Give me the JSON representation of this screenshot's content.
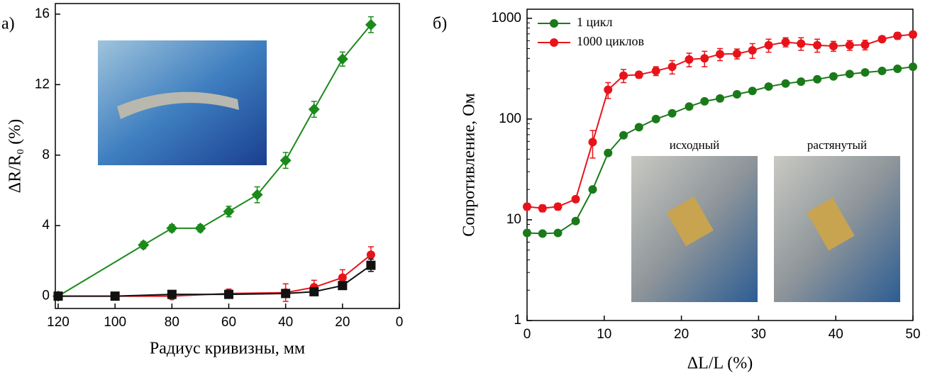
{
  "chart_data": [
    {
      "type": "line",
      "panel_label": "а)",
      "x_label": "Радиус кривизны, мм",
      "y_label": "ΔR/R₀ (%)",
      "xlim": [
        121,
        0
      ],
      "xticks": [
        120,
        100,
        80,
        60,
        40,
        20,
        0
      ],
      "ylim": [
        -0.7,
        16.6
      ],
      "yticks": [
        0,
        4,
        8,
        12,
        16
      ],
      "series": [
        {
          "color": "#1a8a1a",
          "marker": "diamond",
          "x": [
            120,
            90,
            80,
            70,
            60,
            50,
            40,
            30,
            20,
            10
          ],
          "values": [
            0.0,
            2.9,
            3.85,
            3.85,
            4.8,
            5.75,
            7.7,
            10.6,
            13.45,
            15.4
          ],
          "errors": [
            0.1,
            0.2,
            0.2,
            0.2,
            0.3,
            0.45,
            0.45,
            0.45,
            0.4,
            0.45
          ]
        },
        {
          "color": "#e8131a",
          "marker": "circle",
          "x": [
            120,
            100,
            80,
            60,
            40,
            30,
            20,
            10
          ],
          "values": [
            0.0,
            0.0,
            0.0,
            0.15,
            0.2,
            0.5,
            1.05,
            2.35
          ],
          "errors": [
            0.05,
            0.1,
            0.1,
            0.25,
            0.5,
            0.4,
            0.45,
            0.45
          ]
        },
        {
          "color": "#111111",
          "marker": "square",
          "x": [
            120,
            100,
            80,
            60,
            40,
            30,
            20,
            10
          ],
          "values": [
            0.0,
            0.0,
            0.1,
            0.1,
            0.15,
            0.25,
            0.6,
            1.75
          ],
          "errors": [
            0.05,
            0.1,
            0.1,
            0.1,
            0.15,
            0.15,
            0.1,
            0.35
          ]
        }
      ]
    },
    {
      "type": "line",
      "panel_label": "б)",
      "x_label": "ΔL/L (%)",
      "y_label": "Сопротивление, Ом",
      "log_y": true,
      "legend": "top-left",
      "xlim": [
        0,
        50
      ],
      "xticks": [
        0,
        10,
        20,
        30,
        40,
        50
      ],
      "ylim": [
        1,
        1230
      ],
      "yticks": [
        1,
        10,
        100,
        1000
      ],
      "annotations": [
        "исходный",
        "растянутый"
      ],
      "series": [
        {
          "name": "1 цикл",
          "color": "#1a7a1a",
          "marker": "circle",
          "x": [
            0,
            2,
            4,
            6.3,
            8.5,
            10.5,
            12.5,
            14.5,
            16.7,
            18.8,
            21,
            23,
            25,
            27.2,
            29.2,
            31.3,
            33.5,
            35.5,
            37.6,
            39.7,
            41.8,
            43.8,
            46,
            48,
            50
          ],
          "values": [
            7.4,
            7.3,
            7.4,
            9.7,
            20,
            46,
            69,
            83,
            100,
            114,
            133,
            150,
            160,
            176,
            190,
            210,
            225,
            235,
            248,
            265,
            280,
            290,
            300,
            315,
            330
          ]
        },
        {
          "name": "1000 циклов",
          "color": "#e8131a",
          "marker": "circle",
          "x": [
            0,
            2,
            4,
            6.3,
            8.5,
            10.5,
            12.5,
            14.5,
            16.7,
            18.8,
            21,
            23,
            25,
            27.2,
            29.2,
            31.3,
            33.5,
            35.5,
            37.6,
            39.7,
            41.8,
            43.8,
            46,
            48,
            50
          ],
          "values": [
            13.5,
            13,
            13.5,
            16,
            59,
            195,
            270,
            275,
            300,
            330,
            390,
            400,
            440,
            445,
            480,
            540,
            580,
            560,
            540,
            530,
            540,
            545,
            620,
            670,
            690
          ],
          "errors": [
            1,
            1,
            1,
            1,
            18,
            35,
            40,
            20,
            30,
            50,
            60,
            70,
            60,
            50,
            80,
            80,
            60,
            80,
            80,
            60,
            60,
            60,
            40,
            50,
            50
          ]
        }
      ]
    }
  ]
}
